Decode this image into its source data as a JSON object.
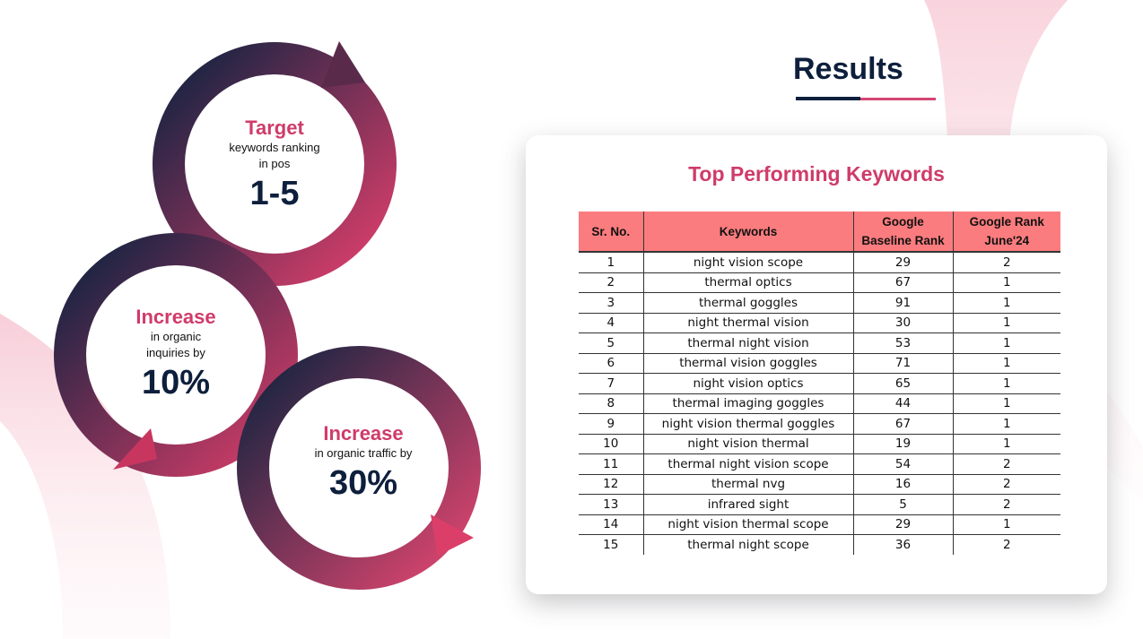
{
  "title": "Results",
  "stats": [
    {
      "head": "Target",
      "sub_lines": [
        "keywords ranking",
        "in pos"
      ],
      "value": "1-5"
    },
    {
      "head": "Increase",
      "sub_lines": [
        "in organic",
        "inquiries by"
      ],
      "value": "10%"
    },
    {
      "head": "Increase",
      "sub_lines": [
        "in organic traffic by"
      ],
      "value": "30%"
    }
  ],
  "card": {
    "title": "Top Performing Keywords",
    "headers": {
      "srno": "Sr. No.",
      "keywords": "Keywords",
      "baseline_1": "Google",
      "baseline_2": "Baseline Rank",
      "june_1": "Google Rank",
      "june_2": "June'24"
    },
    "rows": [
      {
        "sr": "1",
        "keyword": "night vision scope",
        "baseline": "29",
        "june": "2"
      },
      {
        "sr": "2",
        "keyword": "thermal optics",
        "baseline": "67",
        "june": "1"
      },
      {
        "sr": "3",
        "keyword": "thermal goggles",
        "baseline": "91",
        "june": "1"
      },
      {
        "sr": "4",
        "keyword": "night thermal vision",
        "baseline": "30",
        "june": "1"
      },
      {
        "sr": "5",
        "keyword": "thermal night vision",
        "baseline": "53",
        "june": "1"
      },
      {
        "sr": "6",
        "keyword": "thermal vision goggles",
        "baseline": "71",
        "june": "1"
      },
      {
        "sr": "7",
        "keyword": "night vision optics",
        "baseline": "65",
        "june": "1"
      },
      {
        "sr": "8",
        "keyword": "thermal imaging goggles",
        "baseline": "44",
        "june": "1"
      },
      {
        "sr": "9",
        "keyword": "night vision thermal goggles",
        "baseline": "67",
        "june": "1"
      },
      {
        "sr": "10",
        "keyword": "night vision thermal",
        "baseline": "19",
        "june": "1"
      },
      {
        "sr": "11",
        "keyword": "thermal night vision scope",
        "baseline": "54",
        "june": "2"
      },
      {
        "sr": "12",
        "keyword": "thermal nvg",
        "baseline": "16",
        "june": "2"
      },
      {
        "sr": "13",
        "keyword": "infrared sight",
        "baseline": "5",
        "june": "2"
      },
      {
        "sr": "14",
        "keyword": "night vision thermal scope",
        "baseline": "29",
        "june": "1"
      },
      {
        "sr": "15",
        "keyword": "thermal night scope",
        "baseline": "36",
        "june": "2"
      }
    ]
  },
  "colors": {
    "navy": "#0d1f3c",
    "pink": "#cf3b6a",
    "header_fill": "#fb7c7e"
  }
}
